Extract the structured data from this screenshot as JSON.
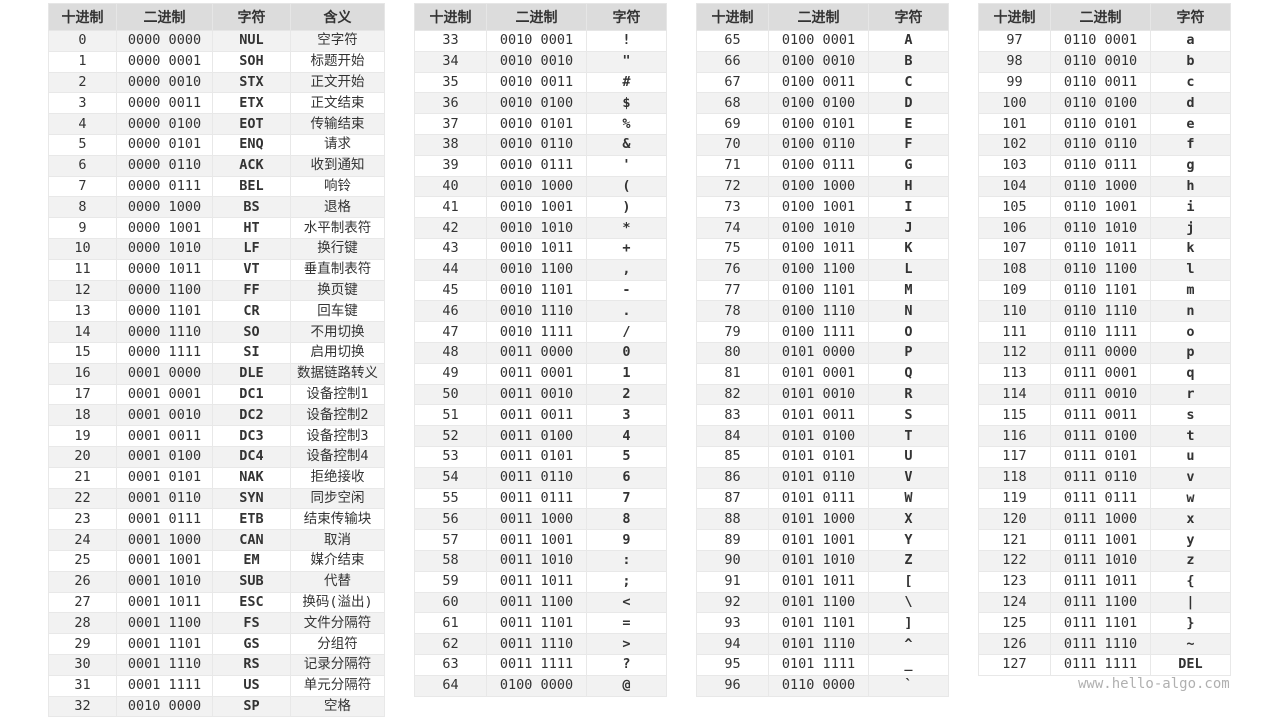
{
  "tables": [
    {
      "headers": [
        "十进制",
        "二进制",
        "字符",
        "含义"
      ],
      "rows": [
        [
          "0",
          "0000 0000",
          "NUL",
          "空字符"
        ],
        [
          "1",
          "0000 0001",
          "SOH",
          "标题开始"
        ],
        [
          "2",
          "0000 0010",
          "STX",
          "正文开始"
        ],
        [
          "3",
          "0000 0011",
          "ETX",
          "正文结束"
        ],
        [
          "4",
          "0000 0100",
          "EOT",
          "传输结束"
        ],
        [
          "5",
          "0000 0101",
          "ENQ",
          "请求"
        ],
        [
          "6",
          "0000 0110",
          "ACK",
          "收到通知"
        ],
        [
          "7",
          "0000 0111",
          "BEL",
          "响铃"
        ],
        [
          "8",
          "0000 1000",
          "BS",
          "退格"
        ],
        [
          "9",
          "0000 1001",
          "HT",
          "水平制表符"
        ],
        [
          "10",
          "0000 1010",
          "LF",
          "换行键"
        ],
        [
          "11",
          "0000 1011",
          "VT",
          "垂直制表符"
        ],
        [
          "12",
          "0000 1100",
          "FF",
          "换页键"
        ],
        [
          "13",
          "0000 1101",
          "CR",
          "回车键"
        ],
        [
          "14",
          "0000 1110",
          "SO",
          "不用切换"
        ],
        [
          "15",
          "0000 1111",
          "SI",
          "启用切换"
        ],
        [
          "16",
          "0001 0000",
          "DLE",
          "数据链路转义"
        ],
        [
          "17",
          "0001 0001",
          "DC1",
          "设备控制1"
        ],
        [
          "18",
          "0001 0010",
          "DC2",
          "设备控制2"
        ],
        [
          "19",
          "0001 0011",
          "DC3",
          "设备控制3"
        ],
        [
          "20",
          "0001 0100",
          "DC4",
          "设备控制4"
        ],
        [
          "21",
          "0001 0101",
          "NAK",
          "拒绝接收"
        ],
        [
          "22",
          "0001 0110",
          "SYN",
          "同步空闲"
        ],
        [
          "23",
          "0001 0111",
          "ETB",
          "结束传输块"
        ],
        [
          "24",
          "0001 1000",
          "CAN",
          "取消"
        ],
        [
          "25",
          "0001 1001",
          "EM",
          "媒介结束"
        ],
        [
          "26",
          "0001 1010",
          "SUB",
          "代替"
        ],
        [
          "27",
          "0001 1011",
          "ESC",
          "换码(溢出)"
        ],
        [
          "28",
          "0001 1100",
          "FS",
          "文件分隔符"
        ],
        [
          "29",
          "0001 1101",
          "GS",
          "分组符"
        ],
        [
          "30",
          "0001 1110",
          "RS",
          "记录分隔符"
        ],
        [
          "31",
          "0001 1111",
          "US",
          "单元分隔符"
        ],
        [
          "32",
          "0010 0000",
          "SP",
          "空格"
        ]
      ]
    },
    {
      "headers": [
        "十进制",
        "二进制",
        "字符"
      ],
      "rows": [
        [
          "33",
          "0010 0001",
          "!"
        ],
        [
          "34",
          "0010 0010",
          "\""
        ],
        [
          "35",
          "0010 0011",
          "#"
        ],
        [
          "36",
          "0010 0100",
          "$"
        ],
        [
          "37",
          "0010 0101",
          "%"
        ],
        [
          "38",
          "0010 0110",
          "&"
        ],
        [
          "39",
          "0010 0111",
          "'"
        ],
        [
          "40",
          "0010 1000",
          "("
        ],
        [
          "41",
          "0010 1001",
          ")"
        ],
        [
          "42",
          "0010 1010",
          "*"
        ],
        [
          "43",
          "0010 1011",
          "+"
        ],
        [
          "44",
          "0010 1100",
          ","
        ],
        [
          "45",
          "0010 1101",
          "-"
        ],
        [
          "46",
          "0010 1110",
          "."
        ],
        [
          "47",
          "0010 1111",
          "/"
        ],
        [
          "48",
          "0011 0000",
          "0"
        ],
        [
          "49",
          "0011 0001",
          "1"
        ],
        [
          "50",
          "0011 0010",
          "2"
        ],
        [
          "51",
          "0011 0011",
          "3"
        ],
        [
          "52",
          "0011 0100",
          "4"
        ],
        [
          "53",
          "0011 0101",
          "5"
        ],
        [
          "54",
          "0011 0110",
          "6"
        ],
        [
          "55",
          "0011 0111",
          "7"
        ],
        [
          "56",
          "0011 1000",
          "8"
        ],
        [
          "57",
          "0011 1001",
          "9"
        ],
        [
          "58",
          "0011 1010",
          ":"
        ],
        [
          "59",
          "0011 1011",
          ";"
        ],
        [
          "60",
          "0011 1100",
          "<"
        ],
        [
          "61",
          "0011 1101",
          "="
        ],
        [
          "62",
          "0011 1110",
          ">"
        ],
        [
          "63",
          "0011 1111",
          "?"
        ],
        [
          "64",
          "0100 0000",
          "@"
        ]
      ]
    },
    {
      "headers": [
        "十进制",
        "二进制",
        "字符"
      ],
      "rows": [
        [
          "65",
          "0100 0001",
          "A"
        ],
        [
          "66",
          "0100 0010",
          "B"
        ],
        [
          "67",
          "0100 0011",
          "C"
        ],
        [
          "68",
          "0100 0100",
          "D"
        ],
        [
          "69",
          "0100 0101",
          "E"
        ],
        [
          "70",
          "0100 0110",
          "F"
        ],
        [
          "71",
          "0100 0111",
          "G"
        ],
        [
          "72",
          "0100 1000",
          "H"
        ],
        [
          "73",
          "0100 1001",
          "I"
        ],
        [
          "74",
          "0100 1010",
          "J"
        ],
        [
          "75",
          "0100 1011",
          "K"
        ],
        [
          "76",
          "0100 1100",
          "L"
        ],
        [
          "77",
          "0100 1101",
          "M"
        ],
        [
          "78",
          "0100 1110",
          "N"
        ],
        [
          "79",
          "0100 1111",
          "O"
        ],
        [
          "80",
          "0101 0000",
          "P"
        ],
        [
          "81",
          "0101 0001",
          "Q"
        ],
        [
          "82",
          "0101 0010",
          "R"
        ],
        [
          "83",
          "0101 0011",
          "S"
        ],
        [
          "84",
          "0101 0100",
          "T"
        ],
        [
          "85",
          "0101 0101",
          "U"
        ],
        [
          "86",
          "0101 0110",
          "V"
        ],
        [
          "87",
          "0101 0111",
          "W"
        ],
        [
          "88",
          "0101 1000",
          "X"
        ],
        [
          "89",
          "0101 1001",
          "Y"
        ],
        [
          "90",
          "0101 1010",
          "Z"
        ],
        [
          "91",
          "0101 1011",
          "["
        ],
        [
          "92",
          "0101 1100",
          "\\"
        ],
        [
          "93",
          "0101 1101",
          "]"
        ],
        [
          "94",
          "0101 1110",
          "^"
        ],
        [
          "95",
          "0101 1111",
          "_"
        ],
        [
          "96",
          "0110 0000",
          "`"
        ]
      ]
    },
    {
      "headers": [
        "十进制",
        "二进制",
        "字符"
      ],
      "rows": [
        [
          "97",
          "0110 0001",
          "a"
        ],
        [
          "98",
          "0110 0010",
          "b"
        ],
        [
          "99",
          "0110 0011",
          "c"
        ],
        [
          "100",
          "0110 0100",
          "d"
        ],
        [
          "101",
          "0110 0101",
          "e"
        ],
        [
          "102",
          "0110 0110",
          "f"
        ],
        [
          "103",
          "0110 0111",
          "g"
        ],
        [
          "104",
          "0110 1000",
          "h"
        ],
        [
          "105",
          "0110 1001",
          "i"
        ],
        [
          "106",
          "0110 1010",
          "j"
        ],
        [
          "107",
          "0110 1011",
          "k"
        ],
        [
          "108",
          "0110 1100",
          "l"
        ],
        [
          "109",
          "0110 1101",
          "m"
        ],
        [
          "110",
          "0110 1110",
          "n"
        ],
        [
          "111",
          "0110 1111",
          "o"
        ],
        [
          "112",
          "0111 0000",
          "p"
        ],
        [
          "113",
          "0111 0001",
          "q"
        ],
        [
          "114",
          "0111 0010",
          "r"
        ],
        [
          "115",
          "0111 0011",
          "s"
        ],
        [
          "116",
          "0111 0100",
          "t"
        ],
        [
          "117",
          "0111 0101",
          "u"
        ],
        [
          "118",
          "0111 0110",
          "v"
        ],
        [
          "119",
          "0111 0111",
          "w"
        ],
        [
          "120",
          "0111 1000",
          "x"
        ],
        [
          "121",
          "0111 1001",
          "y"
        ],
        [
          "122",
          "0111 1010",
          "z"
        ],
        [
          "123",
          "0111 1011",
          "{"
        ],
        [
          "124",
          "0111 1100",
          "|"
        ],
        [
          "125",
          "0111 1101",
          "}"
        ],
        [
          "126",
          "0111 1110",
          "~"
        ],
        [
          "127",
          "0111 1111",
          "DEL"
        ]
      ]
    }
  ],
  "watermark": "www.hello-algo.com",
  "colors": {
    "header_bg": "#dcdcdc",
    "stripe_bg": "#f2f2f2",
    "text": "#333333"
  }
}
